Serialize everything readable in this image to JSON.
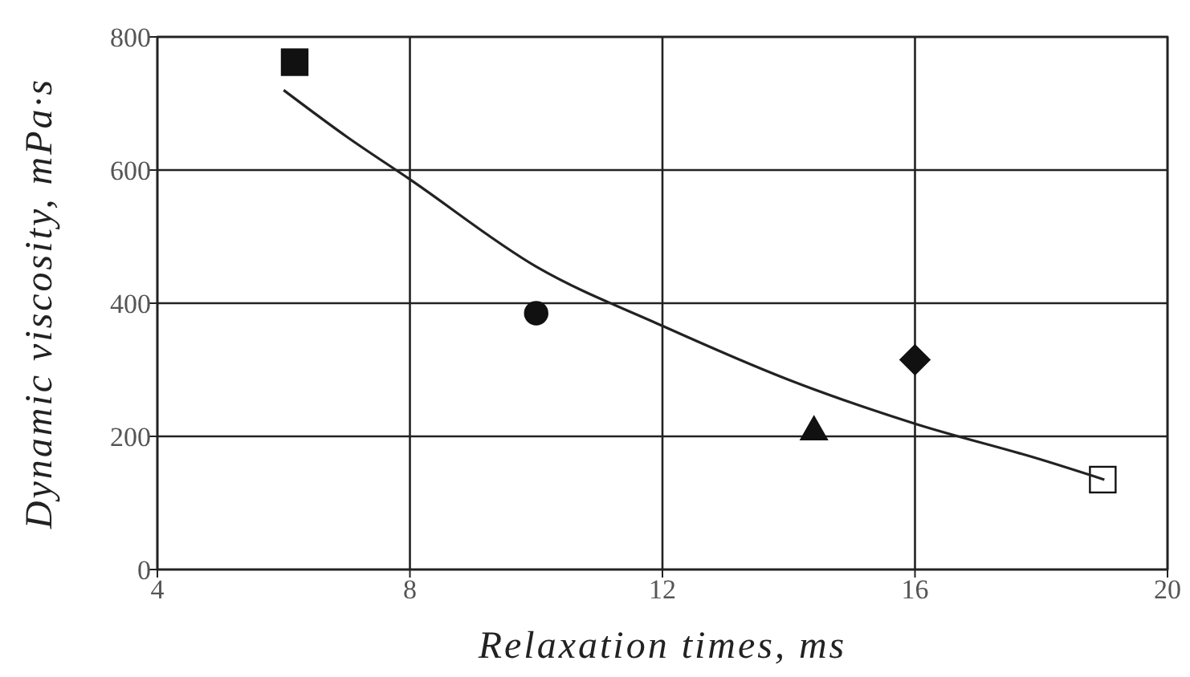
{
  "chart_data": {
    "type": "scatter",
    "xlabel": "Relaxation times, ms",
    "ylabel": "Dynamic viscosity, mPa·s",
    "xlim": [
      4,
      20
    ],
    "ylim": [
      0,
      800
    ],
    "xticks": [
      4,
      8,
      12,
      16,
      20
    ],
    "yticks": [
      0,
      200,
      400,
      600,
      800
    ],
    "grid": true,
    "series": [
      {
        "marker": "square",
        "color": "#111111",
        "x": [
          6.2
        ],
        "values": [
          762
        ]
      },
      {
        "marker": "circle",
        "color": "#111111",
        "x": [
          10
        ],
        "values": [
          385
        ]
      },
      {
        "marker": "triangle",
        "color": "#111111",
        "x": [
          14.4
        ],
        "values": [
          210
        ]
      },
      {
        "marker": "diamond",
        "color": "#111111",
        "x": [
          16
        ],
        "values": [
          315
        ]
      },
      {
        "marker": "square",
        "color": "#ffffff",
        "x": [
          19
        ],
        "values": [
          135
        ]
      },
      {
        "type": "line",
        "marker": "none",
        "color": "#222222",
        "x": [
          6,
          7,
          8,
          10,
          12,
          14,
          16,
          18,
          19
        ],
        "values": [
          720,
          650,
          586,
          455,
          366,
          285,
          219,
          165,
          135
        ]
      }
    ]
  }
}
